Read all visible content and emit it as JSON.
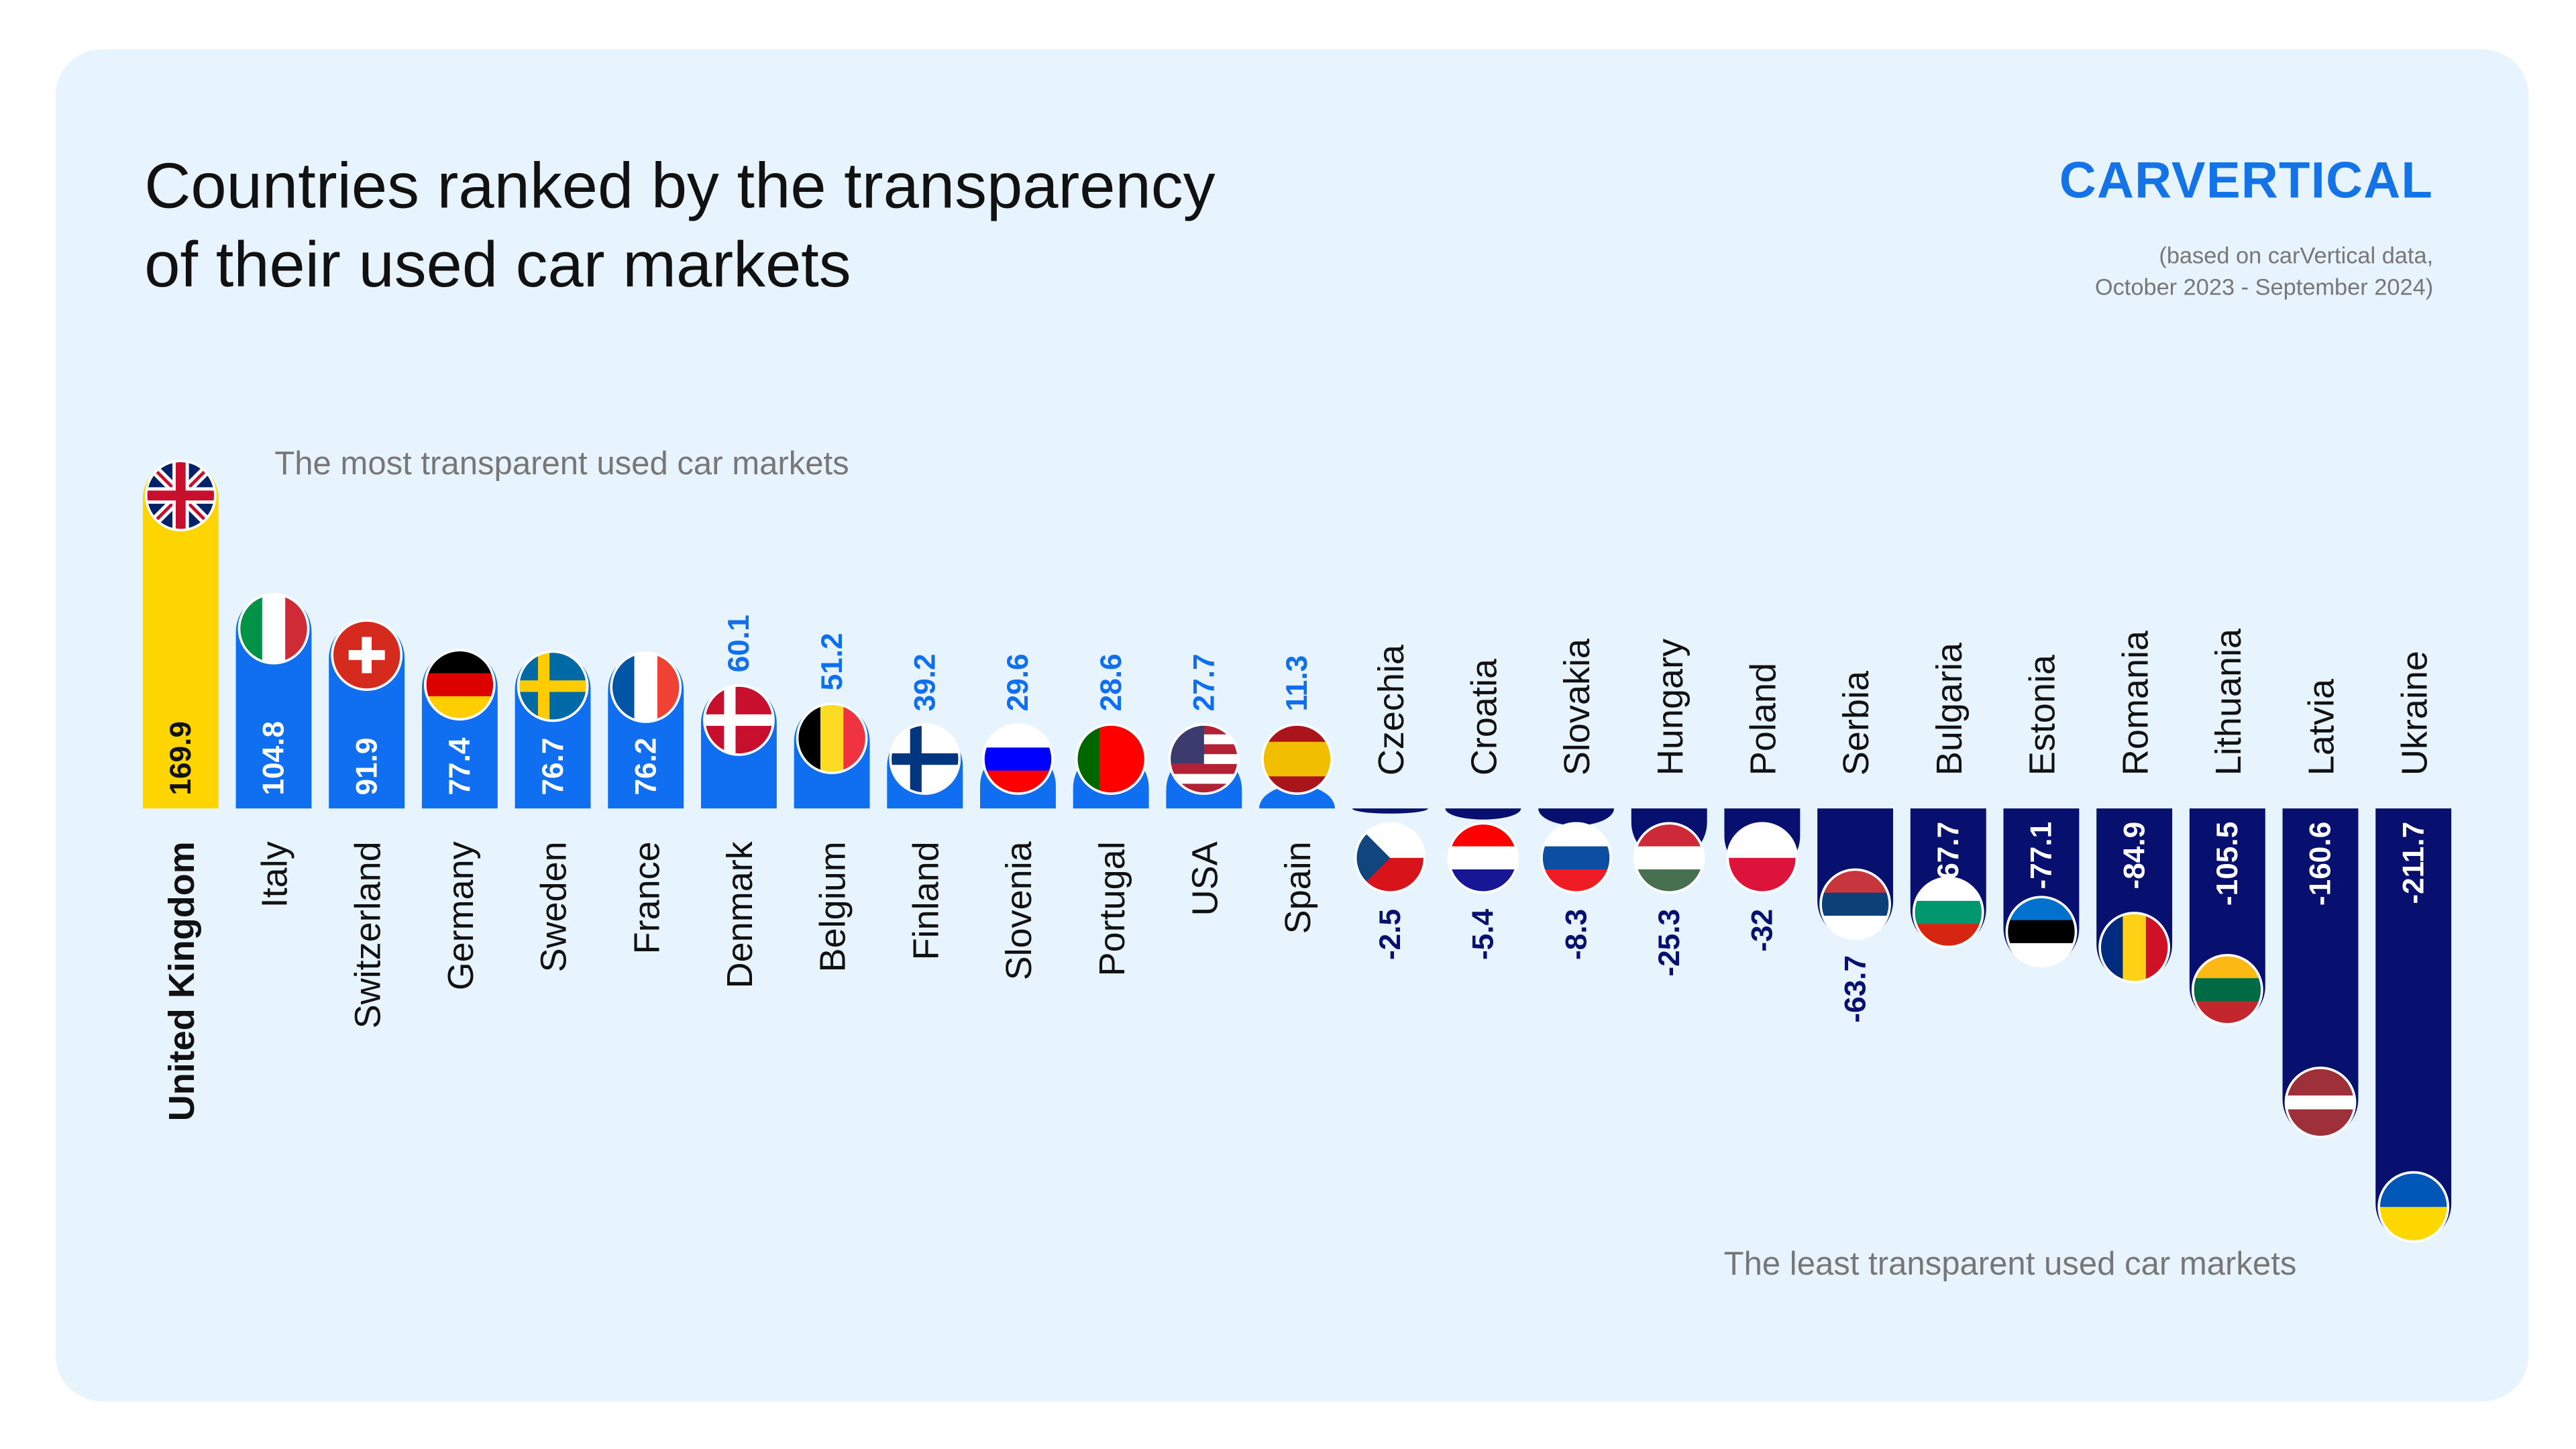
{
  "chart_data": {
    "type": "bar",
    "title": [
      "Countries ranked by the transparency",
      "of their used car markets"
    ],
    "logo": "CARVERTICAL",
    "note": [
      "(based on carVertical data,",
      "October 2023 - September 2024)"
    ],
    "annotations": [
      "The most transparent used car markets",
      "The least transparent used car markets"
    ],
    "categories": [
      "United Kingdom",
      "Italy",
      "Switzerland",
      "Germany",
      "Sweden",
      "France",
      "Denmark",
      "Belgium",
      "Finland",
      "Slovenia",
      "Portugal",
      "USA",
      "Spain",
      "Czechia",
      "Croatia",
      "Slovakia",
      "Hungary",
      "Poland",
      "Serbia",
      "Bulgaria",
      "Estonia",
      "Romania",
      "Lithuania",
      "Latvia",
      "Ukraine"
    ],
    "values": [
      169.9,
      104.8,
      91.9,
      77.4,
      76.7,
      76.2,
      60.1,
      51.2,
      39.2,
      29.6,
      28.6,
      27.7,
      11.3,
      -2.5,
      -5.4,
      -8.3,
      -25.3,
      -32,
      -63.7,
      -67.7,
      -77.1,
      -84.9,
      -105.5,
      -160.6,
      -211.7
    ],
    "colors": {
      "top": "#ffd500",
      "positive": "#0f6ff0",
      "negative": "#07106e"
    }
  }
}
